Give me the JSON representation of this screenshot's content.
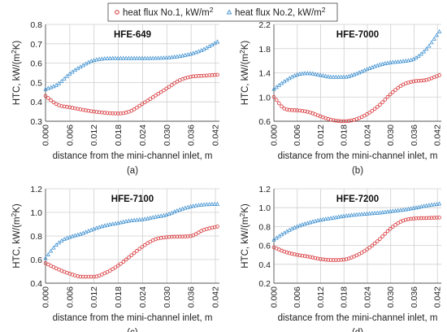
{
  "legend": {
    "entries": [
      {
        "label": "heat flux No.1, kW/m",
        "sup": "2",
        "color": "#d9363a",
        "marker": "circle"
      },
      {
        "label": "heat flux No.2, kW/m",
        "sup": "2",
        "color": "#3b8fd0",
        "marker": "triangle"
      }
    ],
    "placement": "top-center"
  },
  "chart_data": [
    {
      "type": "scatter",
      "title": "HFE-649",
      "sublabel": "(a)",
      "xlabel": "distance from the mini-channel inlet, m",
      "ylabel_main": "HTC, kW/(m",
      "ylabel_sup": "2",
      "ylabel_end": "K)",
      "xlim": [
        0,
        0.043
      ],
      "ylim": [
        0.3,
        0.8
      ],
      "xticks": [
        "0.000",
        "0.006",
        "0.012",
        "0.018",
        "0.024",
        "0.030",
        "0.036",
        "0.042"
      ],
      "yticks": [
        "0.3",
        "0.4",
        "0.5",
        "0.6",
        "0.7",
        "0.8"
      ],
      "series": [
        {
          "name": "heat flux No.1, kW/m2",
          "knots": [
            [
              0,
              0.43
            ],
            [
              0.003,
              0.385
            ],
            [
              0.006,
              0.372
            ],
            [
              0.012,
              0.35
            ],
            [
              0.018,
              0.34
            ],
            [
              0.021,
              0.352
            ],
            [
              0.024,
              0.39
            ],
            [
              0.027,
              0.43
            ],
            [
              0.03,
              0.47
            ],
            [
              0.033,
              0.51
            ],
            [
              0.036,
              0.53
            ],
            [
              0.039,
              0.535
            ],
            [
              0.0425,
              0.54
            ]
          ]
        },
        {
          "name": "heat flux No.2, kW/m2",
          "knots": [
            [
              0,
              0.465
            ],
            [
              0.003,
              0.49
            ],
            [
              0.006,
              0.545
            ],
            [
              0.009,
              0.585
            ],
            [
              0.012,
              0.615
            ],
            [
              0.018,
              0.625
            ],
            [
              0.024,
              0.625
            ],
            [
              0.03,
              0.628
            ],
            [
              0.033,
              0.635
            ],
            [
              0.036,
              0.648
            ],
            [
              0.039,
              0.67
            ],
            [
              0.0425,
              0.71
            ]
          ]
        }
      ]
    },
    {
      "type": "scatter",
      "title": "HFE-7000",
      "sublabel": "(b)",
      "xlabel": "distance from the mini-channel inlet, m",
      "ylabel_main": "HTC, kW/(m",
      "ylabel_sup": "2",
      "ylabel_end": "K)",
      "xlim": [
        0,
        0.043
      ],
      "ylim": [
        0.6,
        2.2
      ],
      "xticks": [
        "0.000",
        "0.006",
        "0.012",
        "0.018",
        "0.024",
        "0.030",
        "0.036",
        "0.042"
      ],
      "yticks": [
        "0.6",
        "1.0",
        "1.4",
        "1.8",
        "2.2"
      ],
      "series": [
        {
          "name": "heat flux No.1, kW/m2",
          "knots": [
            [
              0,
              1.0
            ],
            [
              0.003,
              0.8
            ],
            [
              0.006,
              0.78
            ],
            [
              0.009,
              0.75
            ],
            [
              0.012,
              0.68
            ],
            [
              0.015,
              0.62
            ],
            [
              0.018,
              0.6
            ],
            [
              0.021,
              0.63
            ],
            [
              0.024,
              0.72
            ],
            [
              0.027,
              0.86
            ],
            [
              0.03,
              1.05
            ],
            [
              0.033,
              1.2
            ],
            [
              0.036,
              1.26
            ],
            [
              0.039,
              1.28
            ],
            [
              0.0425,
              1.36
            ]
          ]
        },
        {
          "name": "heat flux No.2, kW/m2",
          "knots": [
            [
              0,
              1.13
            ],
            [
              0.003,
              1.27
            ],
            [
              0.006,
              1.37
            ],
            [
              0.009,
              1.39
            ],
            [
              0.012,
              1.36
            ],
            [
              0.015,
              1.33
            ],
            [
              0.018,
              1.33
            ],
            [
              0.021,
              1.38
            ],
            [
              0.024,
              1.46
            ],
            [
              0.027,
              1.53
            ],
            [
              0.03,
              1.57
            ],
            [
              0.033,
              1.59
            ],
            [
              0.036,
              1.63
            ],
            [
              0.039,
              1.78
            ],
            [
              0.0425,
              2.08
            ]
          ]
        }
      ]
    },
    {
      "type": "scatter",
      "title": "HFE-7100",
      "sublabel": "(c)",
      "xlabel": "distance from the mini-channel inlet, m",
      "ylabel_main": "HTC, kW/(m",
      "ylabel_sup": "2",
      "ylabel_end": "K)",
      "xlim": [
        0,
        0.043
      ],
      "ylim": [
        0.4,
        1.2
      ],
      "xticks": [
        "0.000",
        "0.006",
        "0.012",
        "0.018",
        "0.024",
        "0.030",
        "0.036",
        "0.042"
      ],
      "yticks": [
        "0.4",
        "0.6",
        "0.8",
        "1.0",
        "1.2"
      ],
      "series": [
        {
          "name": "heat flux No.1, kW/m2",
          "knots": [
            [
              0,
              0.57
            ],
            [
              0.003,
              0.52
            ],
            [
              0.006,
              0.48
            ],
            [
              0.009,
              0.455
            ],
            [
              0.012,
              0.455
            ],
            [
              0.015,
              0.49
            ],
            [
              0.018,
              0.55
            ],
            [
              0.021,
              0.63
            ],
            [
              0.024,
              0.71
            ],
            [
              0.027,
              0.77
            ],
            [
              0.03,
              0.79
            ],
            [
              0.033,
              0.795
            ],
            [
              0.036,
              0.8
            ],
            [
              0.039,
              0.85
            ],
            [
              0.0425,
              0.88
            ]
          ]
        },
        {
          "name": "heat flux No.2, kW/m2",
          "knots": [
            [
              0,
              0.61
            ],
            [
              0.002,
              0.7
            ],
            [
              0.004,
              0.76
            ],
            [
              0.006,
              0.79
            ],
            [
              0.009,
              0.82
            ],
            [
              0.012,
              0.86
            ],
            [
              0.015,
              0.89
            ],
            [
              0.018,
              0.91
            ],
            [
              0.021,
              0.93
            ],
            [
              0.024,
              0.94
            ],
            [
              0.027,
              0.96
            ],
            [
              0.03,
              0.98
            ],
            [
              0.033,
              1.02
            ],
            [
              0.036,
              1.05
            ],
            [
              0.039,
              1.065
            ],
            [
              0.0425,
              1.07
            ]
          ]
        }
      ]
    },
    {
      "type": "scatter",
      "title": "HFE-7200",
      "sublabel": "(d)",
      "xlabel": "distance from the mini-channel inlet, m",
      "ylabel_main": "HTC, kW/(m",
      "ylabel_sup": "2",
      "ylabel_end": "K)",
      "xlim": [
        0,
        0.043
      ],
      "ylim": [
        0.2,
        1.2
      ],
      "xticks": [
        "0.000",
        "0.006",
        "0.012",
        "0.018",
        "0.024",
        "0.030",
        "0.036",
        "0.042"
      ],
      "yticks": [
        "0.2",
        "0.4",
        "0.6",
        "0.8",
        "1.0",
        "1.2"
      ],
      "series": [
        {
          "name": "heat flux No.1, kW/m2",
          "knots": [
            [
              0,
              0.58
            ],
            [
              0.003,
              0.53
            ],
            [
              0.006,
              0.5
            ],
            [
              0.009,
              0.48
            ],
            [
              0.012,
              0.455
            ],
            [
              0.015,
              0.445
            ],
            [
              0.018,
              0.45
            ],
            [
              0.021,
              0.49
            ],
            [
              0.024,
              0.56
            ],
            [
              0.027,
              0.66
            ],
            [
              0.03,
              0.78
            ],
            [
              0.033,
              0.86
            ],
            [
              0.036,
              0.885
            ],
            [
              0.039,
              0.89
            ],
            [
              0.0425,
              0.895
            ]
          ]
        },
        {
          "name": "heat flux No.2, kW/m2",
          "knots": [
            [
              0,
              0.66
            ],
            [
              0.003,
              0.74
            ],
            [
              0.006,
              0.8
            ],
            [
              0.009,
              0.84
            ],
            [
              0.012,
              0.87
            ],
            [
              0.015,
              0.89
            ],
            [
              0.018,
              0.91
            ],
            [
              0.021,
              0.925
            ],
            [
              0.024,
              0.935
            ],
            [
              0.027,
              0.945
            ],
            [
              0.03,
              0.96
            ],
            [
              0.033,
              0.975
            ],
            [
              0.036,
              0.995
            ],
            [
              0.039,
              1.02
            ],
            [
              0.0425,
              1.04
            ]
          ]
        }
      ]
    }
  ]
}
